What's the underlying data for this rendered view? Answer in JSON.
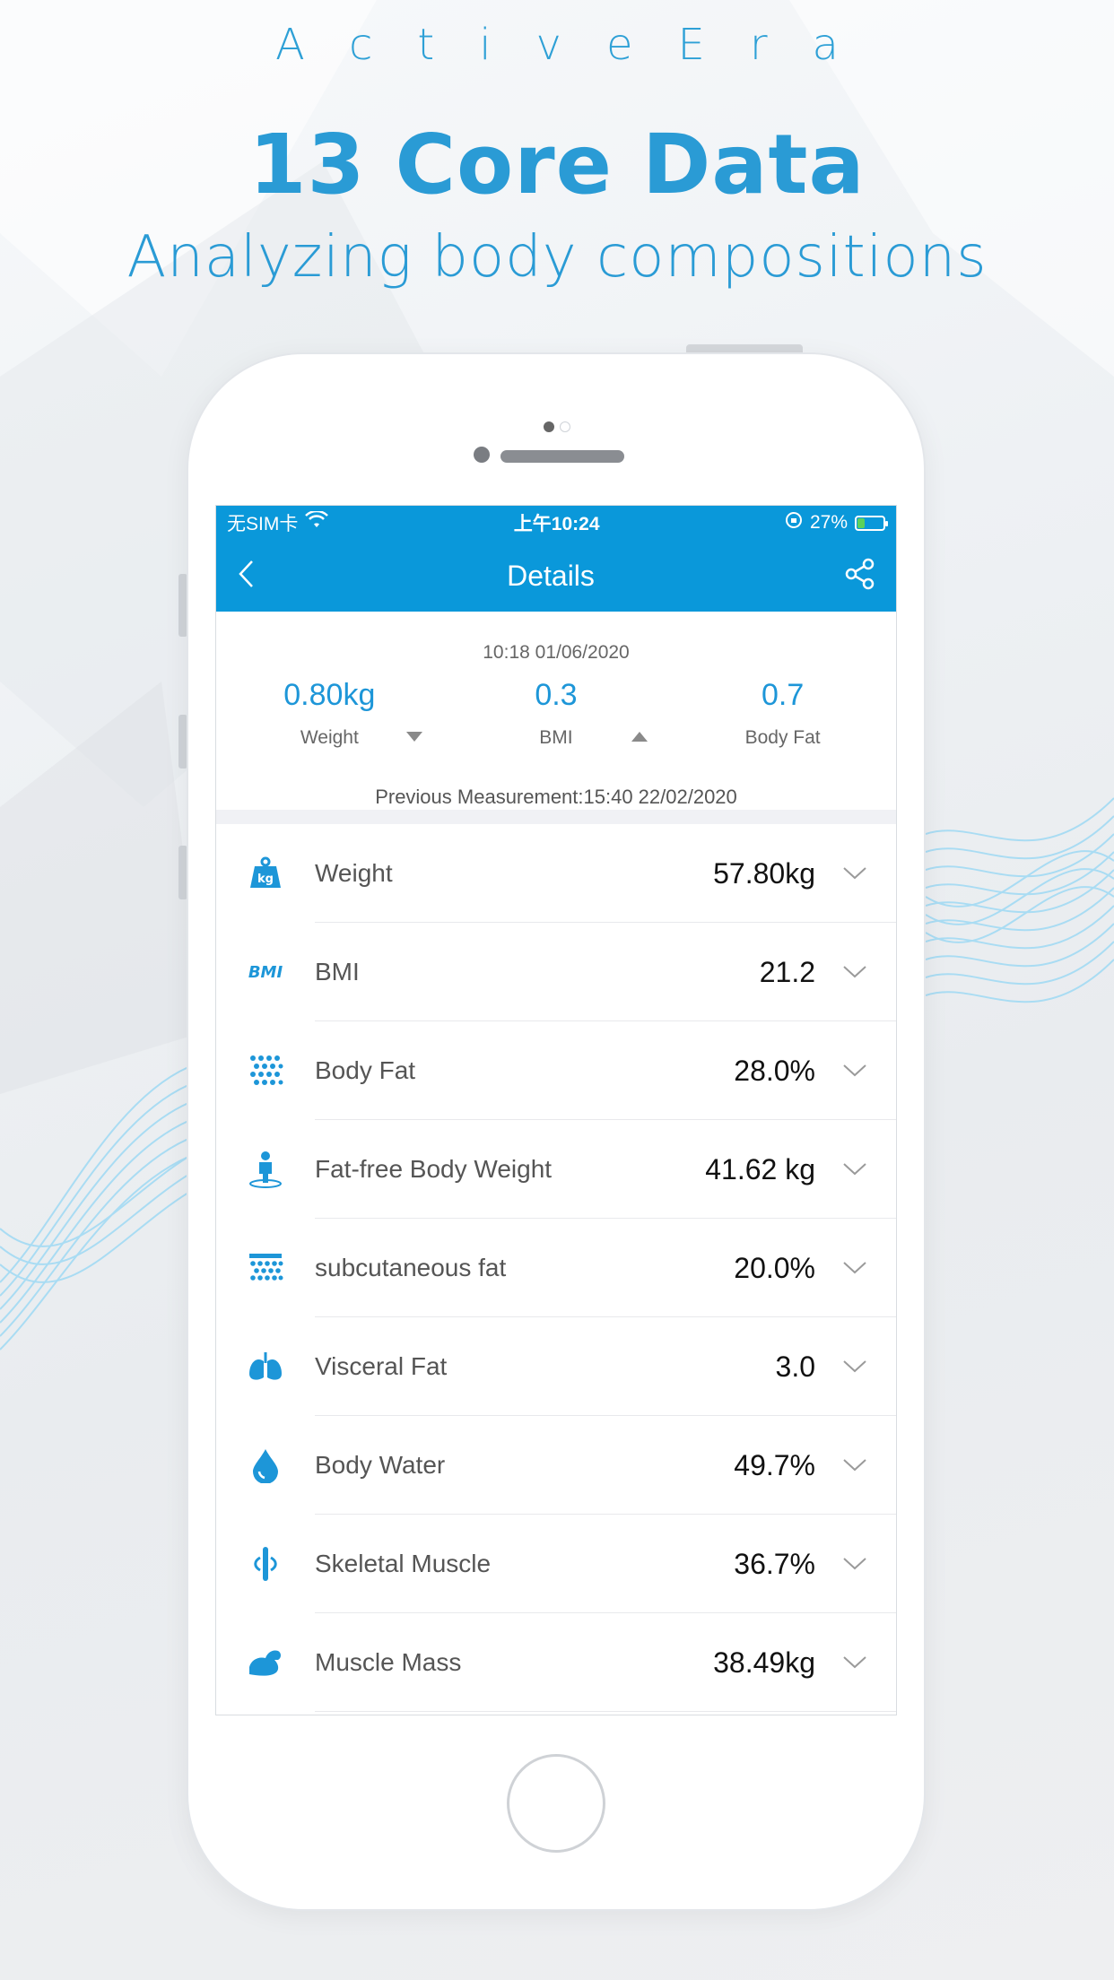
{
  "promo": {
    "brand": "ActiveEra",
    "headline": "13 Core Data",
    "subline": "Analyzing body compositions"
  },
  "status_bar": {
    "carrier": "无SIM卡",
    "time": "上午10:24",
    "battery": "27%",
    "battery_level": 0.27
  },
  "nav": {
    "title": "Details"
  },
  "summary": {
    "datetime": "10:18 01/06/2020",
    "items": [
      {
        "value": "0.80kg",
        "label": "Weight",
        "trend": "down"
      },
      {
        "value": "0.3",
        "label": "BMI",
        "trend": "up"
      },
      {
        "value": "0.7",
        "label": "Body Fat"
      }
    ],
    "previous": "Previous Measurement:15:40 22/02/2020"
  },
  "metrics": [
    {
      "icon": "weight-kg-icon",
      "label": "Weight",
      "value": "57.80kg"
    },
    {
      "icon": "bmi-icon",
      "label": "BMI",
      "value": "21.2",
      "icon_text": "BMI"
    },
    {
      "icon": "body-fat-icon",
      "label": "Body Fat",
      "value": "28.0%"
    },
    {
      "icon": "fat-free-body-icon",
      "label": "Fat-free Body Weight",
      "value": "41.62 kg"
    },
    {
      "icon": "subcutaneous-fat-icon",
      "label": "subcutaneous fat",
      "value": "20.0%"
    },
    {
      "icon": "visceral-fat-icon",
      "label": "Visceral Fat",
      "value": "3.0"
    },
    {
      "icon": "body-water-icon",
      "label": "Body Water",
      "value": "49.7%"
    },
    {
      "icon": "skeletal-muscle-icon",
      "label": "Skeletal Muscle",
      "value": "36.7%"
    },
    {
      "icon": "muscle-mass-icon",
      "label": "Muscle Mass",
      "value": "38.49kg"
    }
  ],
  "colors": {
    "accent": "#0a98da",
    "headline": "#2a9bd5"
  },
  "weight_icon_text": "kg"
}
